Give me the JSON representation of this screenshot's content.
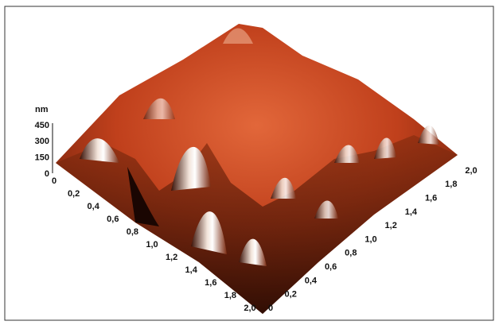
{
  "z_axis": {
    "unit": "nm",
    "ticks": [
      "450",
      "300",
      "150",
      "0"
    ]
  },
  "left_axis": {
    "ticks": [
      "0",
      "0,2",
      "0,4",
      "0,6",
      "0,8",
      "1,0",
      "1,2",
      "1,4",
      "1,6",
      "1,8",
      "2,0"
    ]
  },
  "right_axis": {
    "ticks": [
      "0",
      "0,2",
      "0,4",
      "0,6",
      "0,8",
      "1,0",
      "1,2",
      "1,4",
      "1,6",
      "1,8",
      "2,0"
    ]
  }
}
